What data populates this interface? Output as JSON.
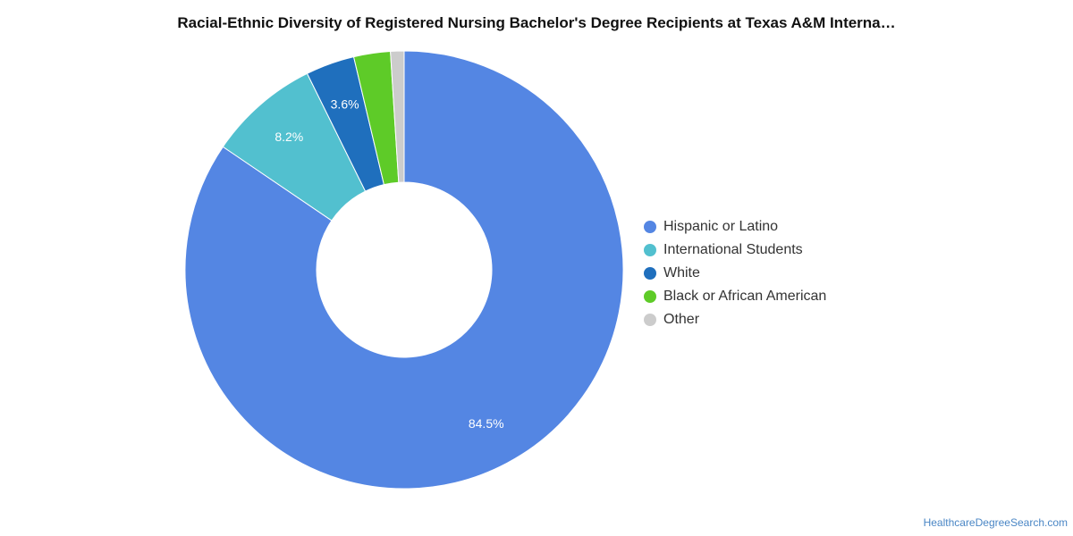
{
  "chart_data": {
    "type": "pie",
    "title": "Racial-Ethnic Diversity of Registered Nursing Bachelor's Degree Recipients at Texas A&M Interna…",
    "donut": true,
    "categories": [
      "Hispanic or Latino",
      "International Students",
      "White",
      "Black or African American",
      "Other"
    ],
    "values": [
      84.5,
      8.2,
      3.6,
      2.7,
      1.0
    ],
    "data_labels": [
      "84.5%",
      "8.2%",
      "3.6%",
      "",
      ""
    ],
    "colors": [
      "#5486e3",
      "#52c0cf",
      "#1f6fbd",
      "#5ecb28",
      "#cccccc"
    ],
    "legend_position": "right"
  },
  "footer": {
    "source": "HealthcareDegreeSearch.com"
  }
}
